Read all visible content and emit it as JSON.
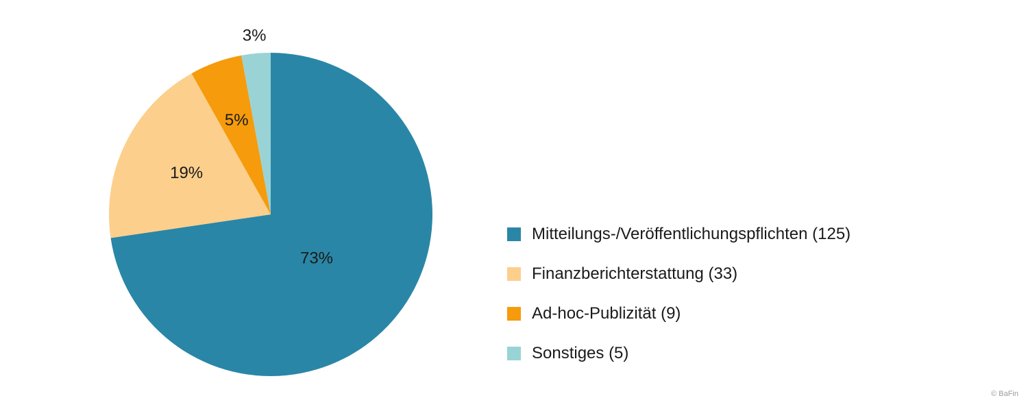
{
  "chart_data": {
    "type": "pie",
    "title": "",
    "slices": [
      {
        "label": "Mitteilungs-/Veröffentlichungspflichten (125)",
        "value": 125,
        "percent_label": "73%",
        "color": "#2a86a6"
      },
      {
        "label": "Finanzberichterstattung (33)",
        "value": 33,
        "percent_label": "19%",
        "color": "#fccf8c"
      },
      {
        "label": "Ad-hoc-Publizität (9)",
        "value": 9,
        "percent_label": "5%",
        "color": "#f59b0c"
      },
      {
        "label": "Sonstiges (5)",
        "value": 5,
        "percent_label": "3%",
        "color": "#99d3d6"
      }
    ],
    "legend_position": "right"
  },
  "footer": {
    "credit": "© BaFin"
  }
}
